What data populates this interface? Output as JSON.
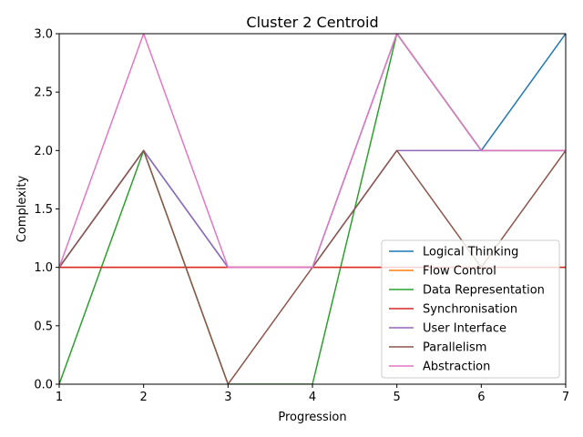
{
  "chart_data": {
    "type": "line",
    "title": "Cluster 2 Centroid",
    "xlabel": "Progression",
    "ylabel": "Complexity",
    "x": [
      1,
      2,
      3,
      4,
      5,
      6,
      7
    ],
    "xlim": [
      1,
      7
    ],
    "ylim": [
      0,
      3
    ],
    "x_ticks": [
      "1",
      "2",
      "3",
      "4",
      "5",
      "6",
      "7"
    ],
    "y_ticks": [
      "0.0",
      "0.5",
      "1.0",
      "1.5",
      "2.0",
      "2.5",
      "3.0"
    ],
    "grid": false,
    "legend_position": "lower-right",
    "series": [
      {
        "name": "Logical Thinking",
        "color": "#1f77b4",
        "values": [
          1,
          2,
          1,
          1,
          3,
          2,
          3
        ]
      },
      {
        "name": "Flow Control",
        "color": "#ff7f0e",
        "values": [
          1,
          1,
          1,
          1,
          1,
          1,
          1
        ]
      },
      {
        "name": "Data Representation",
        "color": "#2ca02c",
        "values": [
          0,
          2,
          0,
          0,
          3,
          2,
          2
        ]
      },
      {
        "name": "Synchronisation",
        "color": "#d62728",
        "values": [
          1,
          1,
          1,
          1,
          1,
          1,
          1
        ]
      },
      {
        "name": "User Interface",
        "color": "#9467bd",
        "values": [
          1,
          2,
          1,
          1,
          2,
          2,
          2
        ]
      },
      {
        "name": "Parallelism",
        "color": "#8c564b",
        "values": [
          1,
          2,
          0,
          1,
          2,
          1,
          2
        ]
      },
      {
        "name": "Abstraction",
        "color": "#e377c2",
        "values": [
          1,
          3,
          1,
          1,
          3,
          2,
          2
        ]
      }
    ]
  }
}
